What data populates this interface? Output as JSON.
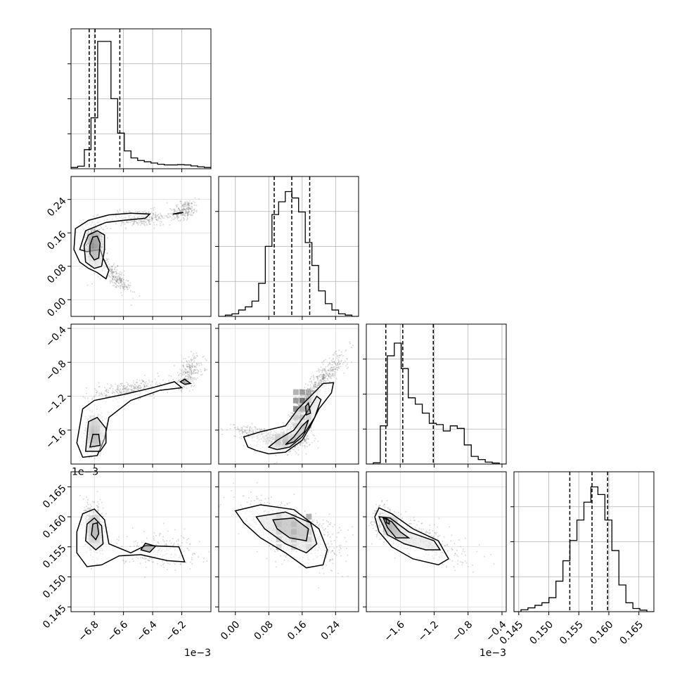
{
  "chart_data": {
    "type": "corner",
    "grid": true,
    "parameters": [
      {
        "index": 0,
        "multiplier": "1e−3",
        "range": [
          -6.96,
          -6.0
        ],
        "ticks": [
          -6.8,
          -6.6,
          -6.4,
          -6.2
        ],
        "tick_labels": [
          "−6.8",
          "−6.6",
          "−6.4",
          "−6.2"
        ],
        "quantiles": [
          -6.835,
          -6.795,
          -6.625
        ]
      },
      {
        "index": 1,
        "multiplier": "",
        "range": [
          -0.04,
          0.295
        ],
        "ticks": [
          0.0,
          0.08,
          0.16,
          0.24
        ],
        "tick_labels": [
          "0.00",
          "0.08",
          "0.16",
          "0.24"
        ],
        "quantiles": [
          0.093,
          0.135,
          0.178
        ]
      },
      {
        "index": 2,
        "multiplier": "1e−3",
        "range": [
          -2.0,
          -0.35
        ],
        "ticks": [
          -1.6,
          -1.2,
          -0.8,
          -0.4
        ],
        "tick_labels": [
          "−1.6",
          "−1.2",
          "−0.8",
          "−0.4"
        ],
        "quantiles": [
          -1.77,
          -1.57,
          -1.21
        ]
      },
      {
        "index": 3,
        "multiplier": "",
        "range": [
          0.1442,
          0.1675
        ],
        "ticks": [
          0.145,
          0.15,
          0.155,
          0.16,
          0.165
        ],
        "tick_labels": [
          "0.145",
          "0.150",
          "0.155",
          "0.160",
          "0.165"
        ],
        "quantiles": [
          0.1535,
          0.1572,
          0.1598
        ]
      }
    ],
    "histograms": [
      [
        0.01,
        0.02,
        0.15,
        0.4,
        1.0,
        1.0,
        0.55,
        0.28,
        0.14,
        0.085,
        0.065,
        0.055,
        0.045,
        0.035,
        0.03,
        0.03,
        0.032,
        0.03,
        0.022,
        0.015,
        0.01
      ],
      [
        0.0,
        0.01,
        0.02,
        0.05,
        0.075,
        0.12,
        0.26,
        0.55,
        0.8,
        0.9,
        0.98,
        0.93,
        0.82,
        0.58,
        0.4,
        0.2,
        0.1,
        0.05,
        0.02,
        0.01,
        0.0
      ],
      [
        0.0,
        0.01,
        0.3,
        0.85,
        0.95,
        0.75,
        0.52,
        0.47,
        0.4,
        0.32,
        0.31,
        0.26,
        0.3,
        0.28,
        0.15,
        0.06,
        0.035,
        0.015,
        0.008,
        0.0
      ],
      [
        0.0,
        0.015,
        0.03,
        0.05,
        0.07,
        0.11,
        0.24,
        0.4,
        0.56,
        0.72,
        0.86,
        0.98,
        0.92,
        0.72,
        0.48,
        0.21,
        0.07,
        0.025,
        0.012,
        0.0
      ]
    ],
    "pairs": [
      {
        "x": 0,
        "y": 1,
        "blobs": [
          [
            -6.8,
            0.13,
            0.03,
            0.025,
            -0.2,
            1.0
          ],
          [
            -6.5,
            0.195,
            0.12,
            0.01,
            0.2,
            0.45
          ],
          [
            -6.18,
            0.215,
            0.05,
            0.012,
            0.4,
            0.3
          ],
          [
            -6.65,
            0.055,
            0.05,
            0.02,
            -0.8,
            0.35
          ]
        ]
      },
      {
        "x": 0,
        "y": 2,
        "blobs": [
          [
            -6.8,
            -1.62,
            0.03,
            0.11,
            0.1,
            1.0
          ],
          [
            -6.55,
            -1.12,
            0.14,
            0.06,
            0.5,
            0.45
          ],
          [
            -6.15,
            -0.92,
            0.05,
            0.1,
            0.4,
            0.35
          ]
        ]
      },
      {
        "x": 1,
        "y": 2,
        "blobs": [
          [
            0.12,
            -1.72,
            0.03,
            0.05,
            0.1,
            0.9
          ],
          [
            0.16,
            -1.35,
            0.025,
            0.22,
            0.9,
            0.9
          ],
          [
            0.06,
            -1.65,
            0.035,
            0.05,
            -0.6,
            0.35
          ],
          [
            0.22,
            -0.95,
            0.025,
            0.15,
            0.9,
            0.4
          ]
        ]
      },
      {
        "x": 0,
        "y": 3,
        "blobs": [
          [
            -6.8,
            0.158,
            0.03,
            0.002,
            -0.2,
            1.0
          ],
          [
            -6.35,
            0.1545,
            0.14,
            0.0015,
            0.0,
            0.3
          ]
        ]
      },
      {
        "x": 1,
        "y": 3,
        "blobs": [
          [
            0.14,
            0.1575,
            0.06,
            0.0028,
            -0.6,
            1.0
          ]
        ]
      },
      {
        "x": 2,
        "y": 3,
        "blobs": [
          [
            -1.72,
            0.1585,
            0.08,
            0.0012,
            -0.5,
            0.9
          ],
          [
            -1.4,
            0.1565,
            0.28,
            0.002,
            -0.7,
            0.6
          ]
        ]
      }
    ],
    "contours": [
      {
        "x": 0,
        "y": 1,
        "levels": [
          [
            [
              -6.9,
              0.12
            ],
            [
              -6.86,
              0.165
            ],
            [
              -6.72,
              0.185
            ],
            [
              -6.6,
              0.19
            ],
            [
              -6.45,
              0.195
            ],
            [
              -6.42,
              0.205
            ],
            [
              -6.55,
              0.207
            ],
            [
              -6.7,
              0.203
            ],
            [
              -6.84,
              0.19
            ],
            [
              -6.93,
              0.17
            ],
            [
              -6.94,
              0.12
            ],
            [
              -6.9,
              0.09
            ],
            [
              -6.84,
              0.075
            ],
            [
              -6.78,
              0.065
            ],
            [
              -6.72,
              0.05
            ],
            [
              -6.7,
              0.07
            ],
            [
              -6.74,
              0.1
            ],
            [
              -6.76,
              0.12
            ],
            [
              -6.85,
              0.115
            ]
          ],
          [
            [
              -6.87,
              0.13
            ],
            [
              -6.84,
              0.155
            ],
            [
              -6.78,
              0.165
            ],
            [
              -6.73,
              0.155
            ],
            [
              -6.73,
              0.12
            ],
            [
              -6.75,
              0.08
            ],
            [
              -6.8,
              0.075
            ],
            [
              -6.86,
              0.09
            ]
          ],
          [
            [
              -6.83,
              0.13
            ],
            [
              -6.81,
              0.15
            ],
            [
              -6.78,
              0.152
            ],
            [
              -6.76,
              0.135
            ],
            [
              -6.77,
              0.1
            ],
            [
              -6.8,
              0.095
            ],
            [
              -6.83,
              0.11
            ]
          ],
          [
            [
              -6.26,
              0.205
            ],
            [
              -6.22,
              0.208
            ],
            [
              -6.19,
              0.209
            ],
            [
              -6.23,
              0.206
            ]
          ]
        ]
      },
      {
        "x": 0,
        "y": 2,
        "levels": [
          [
            [
              -6.92,
              -1.75
            ],
            [
              -6.88,
              -1.35
            ],
            [
              -6.8,
              -1.25
            ],
            [
              -6.6,
              -1.18
            ],
            [
              -6.4,
              -1.1
            ],
            [
              -6.25,
              -1.03
            ],
            [
              -6.2,
              -1.1
            ],
            [
              -6.35,
              -1.13
            ],
            [
              -6.55,
              -1.25
            ],
            [
              -6.7,
              -1.45
            ],
            [
              -6.73,
              -1.7
            ],
            [
              -6.78,
              -1.9
            ],
            [
              -6.88,
              -1.92
            ]
          ],
          [
            [
              -6.86,
              -1.85
            ],
            [
              -6.84,
              -1.5
            ],
            [
              -6.78,
              -1.45
            ],
            [
              -6.72,
              -1.58
            ],
            [
              -6.72,
              -1.75
            ],
            [
              -6.76,
              -1.85
            ]
          ],
          [
            [
              -6.83,
              -1.8
            ],
            [
              -6.81,
              -1.65
            ],
            [
              -6.77,
              -1.65
            ],
            [
              -6.76,
              -1.78
            ]
          ],
          [
            [
              -6.18,
              -1.0
            ],
            [
              -6.14,
              -1.05
            ],
            [
              -6.18,
              -1.06
            ],
            [
              -6.21,
              -1.03
            ]
          ]
        ]
      },
      {
        "x": 1,
        "y": 2,
        "levels": [
          [
            [
              0.03,
              -1.8
            ],
            [
              0.02,
              -1.68
            ],
            [
              0.06,
              -1.62
            ],
            [
              0.12,
              -1.55
            ],
            [
              0.15,
              -1.35
            ],
            [
              0.18,
              -1.2
            ],
            [
              0.21,
              -1.05
            ],
            [
              0.235,
              -1.04
            ],
            [
              0.23,
              -1.16
            ],
            [
              0.2,
              -1.35
            ],
            [
              0.18,
              -1.55
            ],
            [
              0.16,
              -1.72
            ],
            [
              0.12,
              -1.86
            ],
            [
              0.08,
              -1.88
            ],
            [
              0.05,
              -1.84
            ]
          ],
          [
            [
              0.08,
              -1.8
            ],
            [
              0.1,
              -1.72
            ],
            [
              0.14,
              -1.6
            ],
            [
              0.17,
              -1.4
            ],
            [
              0.195,
              -1.2
            ],
            [
              0.205,
              -1.24
            ],
            [
              0.19,
              -1.45
            ],
            [
              0.16,
              -1.68
            ],
            [
              0.13,
              -1.8
            ],
            [
              0.1,
              -1.83
            ]
          ],
          [
            [
              0.12,
              -1.77
            ],
            [
              0.14,
              -1.68
            ],
            [
              0.16,
              -1.55
            ],
            [
              0.175,
              -1.48
            ],
            [
              0.165,
              -1.62
            ],
            [
              0.14,
              -1.74
            ]
          ],
          [
            [
              0.175,
              -1.28
            ],
            [
              0.18,
              -1.4
            ],
            [
              0.17,
              -1.42
            ],
            [
              0.168,
              -1.32
            ]
          ]
        ]
      },
      {
        "x": 0,
        "y": 3,
        "levels": [
          [
            [
              -6.92,
              0.154
            ],
            [
              -6.92,
              0.1575
            ],
            [
              -6.88,
              0.1605
            ],
            [
              -6.8,
              0.1613
            ],
            [
              -6.73,
              0.1595
            ],
            [
              -6.7,
              0.1555
            ],
            [
              -6.55,
              0.154
            ],
            [
              -6.45,
              0.1552
            ],
            [
              -6.22,
              0.155
            ],
            [
              -6.18,
              0.1525
            ],
            [
              -6.3,
              0.1527
            ],
            [
              -6.48,
              0.1537
            ],
            [
              -6.63,
              0.1535
            ],
            [
              -6.75,
              0.152
            ],
            [
              -6.85,
              0.1517
            ]
          ],
          [
            [
              -6.86,
              0.156
            ],
            [
              -6.85,
              0.1588
            ],
            [
              -6.8,
              0.1598
            ],
            [
              -6.75,
              0.1585
            ],
            [
              -6.74,
              0.1555
            ],
            [
              -6.79,
              0.1545
            ]
          ],
          [
            [
              -6.82,
              0.157
            ],
            [
              -6.81,
              0.1588
            ],
            [
              -6.78,
              0.159
            ],
            [
              -6.77,
              0.1572
            ],
            [
              -6.79,
              0.1562
            ]
          ],
          [
            [
              -6.48,
              0.1545
            ],
            [
              -6.45,
              0.1556
            ],
            [
              -6.38,
              0.1551
            ],
            [
              -6.42,
              0.1541
            ]
          ]
        ]
      },
      {
        "x": 1,
        "y": 3,
        "levels": [
          [
            [
              0.0,
              0.161
            ],
            [
              0.06,
              0.162
            ],
            [
              0.14,
              0.1612
            ],
            [
              0.2,
              0.158
            ],
            [
              0.22,
              0.1545
            ],
            [
              0.21,
              0.152
            ],
            [
              0.17,
              0.1515
            ],
            [
              0.12,
              0.154
            ],
            [
              0.06,
              0.1565
            ],
            [
              0.02,
              0.159
            ]
          ],
          [
            [
              0.05,
              0.16
            ],
            [
              0.12,
              0.1608
            ],
            [
              0.18,
              0.159
            ],
            [
              0.195,
              0.1555
            ],
            [
              0.17,
              0.154
            ],
            [
              0.12,
              0.1555
            ],
            [
              0.07,
              0.158
            ]
          ],
          [
            [
              0.09,
              0.1595
            ],
            [
              0.14,
              0.1598
            ],
            [
              0.175,
              0.158
            ],
            [
              0.17,
              0.156
            ],
            [
              0.13,
              0.1565
            ],
            [
              0.1,
              0.158
            ]
          ]
        ]
      },
      {
        "x": 2,
        "y": 3,
        "levels": [
          [
            [
              -1.9,
              0.16
            ],
            [
              -1.85,
              0.1615
            ],
            [
              -1.7,
              0.1605
            ],
            [
              -1.45,
              0.158
            ],
            [
              -1.15,
              0.156
            ],
            [
              -1.03,
              0.153
            ],
            [
              -1.15,
              0.152
            ],
            [
              -1.45,
              0.153
            ],
            [
              -1.7,
              0.155
            ],
            [
              -1.85,
              0.1575
            ]
          ],
          [
            [
              -1.85,
              0.16
            ],
            [
              -1.72,
              0.1598
            ],
            [
              -1.5,
              0.1575
            ],
            [
              -1.2,
              0.156
            ],
            [
              -1.13,
              0.1545
            ],
            [
              -1.3,
              0.1545
            ],
            [
              -1.55,
              0.1555
            ],
            [
              -1.75,
              0.157
            ]
          ],
          [
            [
              -1.8,
              0.1598
            ],
            [
              -1.7,
              0.1592
            ],
            [
              -1.6,
              0.1575
            ],
            [
              -1.5,
              0.1565
            ],
            [
              -1.65,
              0.1565
            ],
            [
              -1.75,
              0.1582
            ]
          ],
          [
            [
              -1.77,
              0.1598
            ],
            [
              -1.73,
              0.1594
            ],
            [
              -1.73,
              0.1588
            ],
            [
              -1.76,
              0.159
            ]
          ]
        ]
      }
    ]
  }
}
